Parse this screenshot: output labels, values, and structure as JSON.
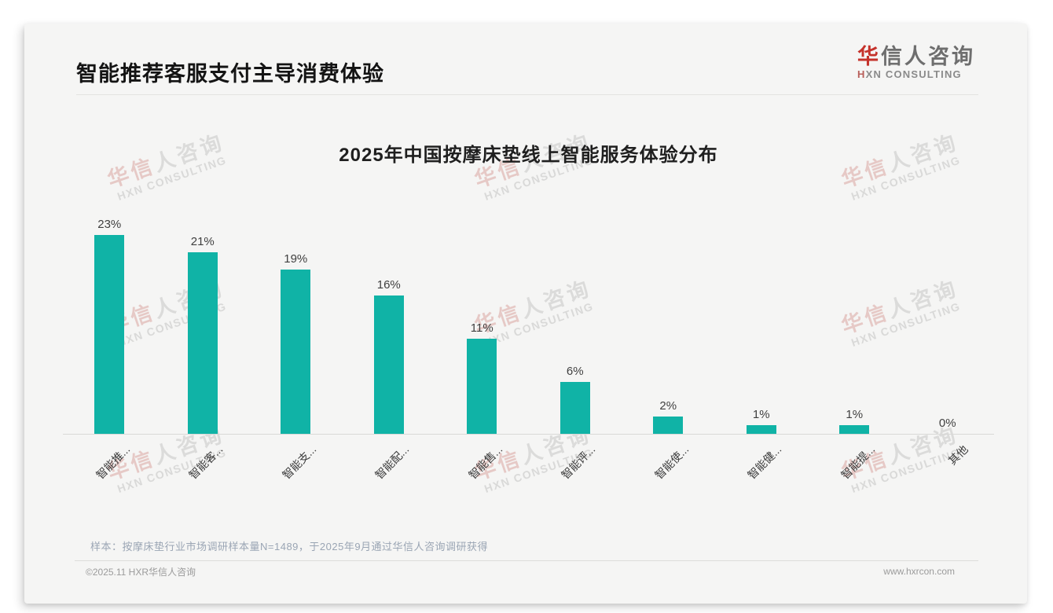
{
  "page": {
    "header": {
      "title": "智能推荐客服支付主导消费体验"
    },
    "logo": {
      "cn_accent": "华",
      "cn_rest": "信人咨询",
      "en_accent": "H",
      "en_rest": "XN CONSULTING"
    },
    "watermark": {
      "cn_accent": "华信",
      "cn_rest": "人咨询",
      "en": "HXN CONSULTING"
    },
    "note": "样本：按摩床垫行业市场调研样本量N=1489，于2025年9月通过华信人咨询调研获得",
    "footer": {
      "left": "©2025.11 HXR华信人咨询",
      "right": "www.hxrcon.com"
    }
  },
  "chart_data": {
    "type": "bar",
    "title": "2025年中国按摩床垫线上智能服务体验分布",
    "categories": [
      "智能推...",
      "智能客...",
      "智能支...",
      "智能配...",
      "智能售...",
      "智能评...",
      "智能使...",
      "智能健...",
      "智能提...",
      "其他"
    ],
    "values": [
      23,
      21,
      19,
      16,
      11,
      6,
      2,
      1,
      1,
      0
    ],
    "value_labels": [
      "23%",
      "21%",
      "19%",
      "16%",
      "11%",
      "6%",
      "2%",
      "1%",
      "1%",
      "0%"
    ],
    "unit": "%",
    "bar_color": "#10b3a6",
    "ylim": [
      0,
      25
    ],
    "x_label_rotation": 45,
    "grid": false,
    "legend": "none",
    "xlabel": "",
    "ylabel": ""
  }
}
